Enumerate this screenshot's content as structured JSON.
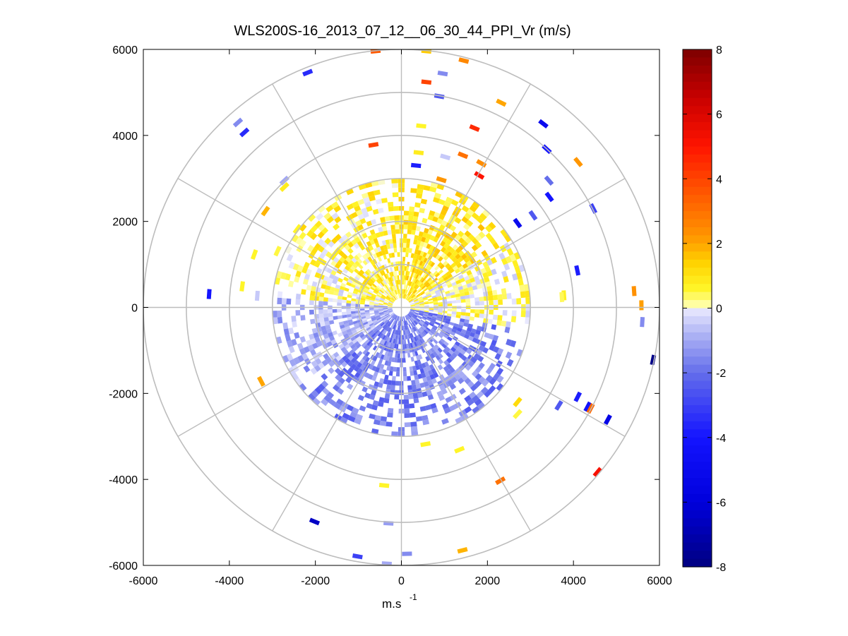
{
  "chart_data": {
    "type": "heatmap",
    "subtype": "polar-ppi",
    "title": "WLS200S-16_2013_07_12__06_30_44_PPI_Vr (m/s)",
    "xlabel": "m.s",
    "xlabel_sup": "-1",
    "ylabel": "",
    "xlim": [
      -6000,
      6000
    ],
    "ylim": [
      -6000,
      6000
    ],
    "x_ticks": [
      "-6000",
      "-4000",
      "-2000",
      "0",
      "2000",
      "4000",
      "6000"
    ],
    "y_ticks": [
      "6000",
      "4000",
      "2000",
      "0",
      "-2000",
      "-4000",
      "-6000"
    ],
    "range_rings": [
      1000,
      2000,
      3000,
      4000,
      5000,
      6000
    ],
    "spoke_angles_deg": [
      0,
      30,
      60,
      90,
      120,
      150,
      180,
      210,
      240,
      270,
      300,
      330
    ],
    "grid": true,
    "colorbar": {
      "min": -8,
      "max": 8,
      "ticks": [
        "8",
        "6",
        "4",
        "2",
        "0",
        "-2",
        "-4",
        "-6",
        "-8"
      ],
      "colormap": "blue-white-yellow-red"
    },
    "inner_field": {
      "description_points": [
        {
          "azimuth_sector": "north-northeast",
          "typical_vr": 0.8
        },
        {
          "azimuth_sector": "west-northwest",
          "typical_vr": 0.5
        },
        {
          "azimuth_sector": "south-southeast",
          "typical_vr": -1.5
        },
        {
          "azimuth_sector": "south",
          "typical_vr": -1.8
        },
        {
          "azimuth_sector": "east",
          "typical_vr": 0.4
        }
      ],
      "max_range": 3000
    },
    "far_gates": [
      {
        "x": -600,
        "y": 5960,
        "v": 3.5
      },
      {
        "x": 580,
        "y": 5960,
        "v": 1.5
      },
      {
        "x": 1450,
        "y": 5740,
        "v": 2.5
      },
      {
        "x": 960,
        "y": 5440,
        "v": -1.5
      },
      {
        "x": 580,
        "y": 5240,
        "v": 4.0
      },
      {
        "x": -2180,
        "y": 5460,
        "v": -3.5
      },
      {
        "x": 880,
        "y": 4910,
        "v": -2.5
      },
      {
        "x": 2320,
        "y": 4760,
        "v": 2.0
      },
      {
        "x": -3800,
        "y": 4300,
        "v": -1.5
      },
      {
        "x": -3650,
        "y": 4070,
        "v": -3.5
      },
      {
        "x": 3300,
        "y": 4270,
        "v": -5.0
      },
      {
        "x": 1700,
        "y": 4170,
        "v": 4.5
      },
      {
        "x": 460,
        "y": 4220,
        "v": 0.6
      },
      {
        "x": 3380,
        "y": 3680,
        "v": -4.0
      },
      {
        "x": 4110,
        "y": 3380,
        "v": 2.2
      },
      {
        "x": -650,
        "y": 3780,
        "v": 4.0
      },
      {
        "x": 400,
        "y": 3600,
        "v": 0.8
      },
      {
        "x": 1020,
        "y": 3500,
        "v": -0.5
      },
      {
        "x": 1430,
        "y": 3540,
        "v": 3.0
      },
      {
        "x": 1860,
        "y": 3350,
        "v": 2.4
      },
      {
        "x": 1810,
        "y": 3070,
        "v": 5.0
      },
      {
        "x": 340,
        "y": 3300,
        "v": -3.8
      },
      {
        "x": 930,
        "y": 2970,
        "v": 2.2
      },
      {
        "x": 3430,
        "y": 2950,
        "v": -2.0
      },
      {
        "x": -2720,
        "y": 2950,
        "v": -1.0
      },
      {
        "x": -2720,
        "y": 2800,
        "v": 0.8
      },
      {
        "x": 3440,
        "y": 2570,
        "v": -4.0
      },
      {
        "x": 4460,
        "y": 2300,
        "v": -3.0
      },
      {
        "x": -3160,
        "y": 2240,
        "v": 1.8
      },
      {
        "x": -2420,
        "y": 1820,
        "v": 0.6
      },
      {
        "x": 2700,
        "y": 1960,
        "v": -5.0
      },
      {
        "x": 3060,
        "y": 2140,
        "v": -2.5
      },
      {
        "x": -3420,
        "y": 1230,
        "v": 0.6
      },
      {
        "x": -2880,
        "y": 1310,
        "v": 0.5
      },
      {
        "x": 4090,
        "y": 860,
        "v": -3.8
      },
      {
        "x": 5410,
        "y": 380,
        "v": 2.3
      },
      {
        "x": 5580,
        "y": 50,
        "v": 2.1
      },
      {
        "x": 5600,
        "y": -340,
        "v": -1.5
      },
      {
        "x": -4470,
        "y": 310,
        "v": -4.0
      },
      {
        "x": -3700,
        "y": 490,
        "v": 0.6
      },
      {
        "x": -3350,
        "y": 270,
        "v": -0.5
      },
      {
        "x": 3780,
        "y": 280,
        "v": 0.7
      },
      {
        "x": 3730,
        "y": 240,
        "v": 0.4
      },
      {
        "x": 5850,
        "y": -1220,
        "v": -7.8
      },
      {
        "x": -3260,
        "y": -1720,
        "v": 2.0
      },
      {
        "x": 4800,
        "y": -2610,
        "v": -5.5
      },
      {
        "x": 4330,
        "y": -2310,
        "v": -4.2
      },
      {
        "x": 4400,
        "y": -2350,
        "v": 3.2
      },
      {
        "x": 4100,
        "y": -2080,
        "v": -3.8
      },
      {
        "x": 3660,
        "y": -2280,
        "v": -2.5
      },
      {
        "x": 2700,
        "y": -2200,
        "v": 1.2
      },
      {
        "x": 2700,
        "y": -2480,
        "v": 0.5
      },
      {
        "x": 1350,
        "y": -3310,
        "v": 0.6
      },
      {
        "x": 560,
        "y": -3180,
        "v": 0.6
      },
      {
        "x": 4560,
        "y": -3830,
        "v": 5.2
      },
      {
        "x": 2300,
        "y": -4030,
        "v": 3.0
      },
      {
        "x": -400,
        "y": -4140,
        "v": 0.6
      },
      {
        "x": -2020,
        "y": -4980,
        "v": -6.5
      },
      {
        "x": -300,
        "y": -5020,
        "v": -1.2
      },
      {
        "x": 1420,
        "y": -5650,
        "v": 1.8
      },
      {
        "x": 130,
        "y": -5730,
        "v": -1.5
      },
      {
        "x": -1020,
        "y": -5790,
        "v": -3.0
      },
      {
        "x": -340,
        "y": -5960,
        "v": -1.0
      }
    ]
  }
}
